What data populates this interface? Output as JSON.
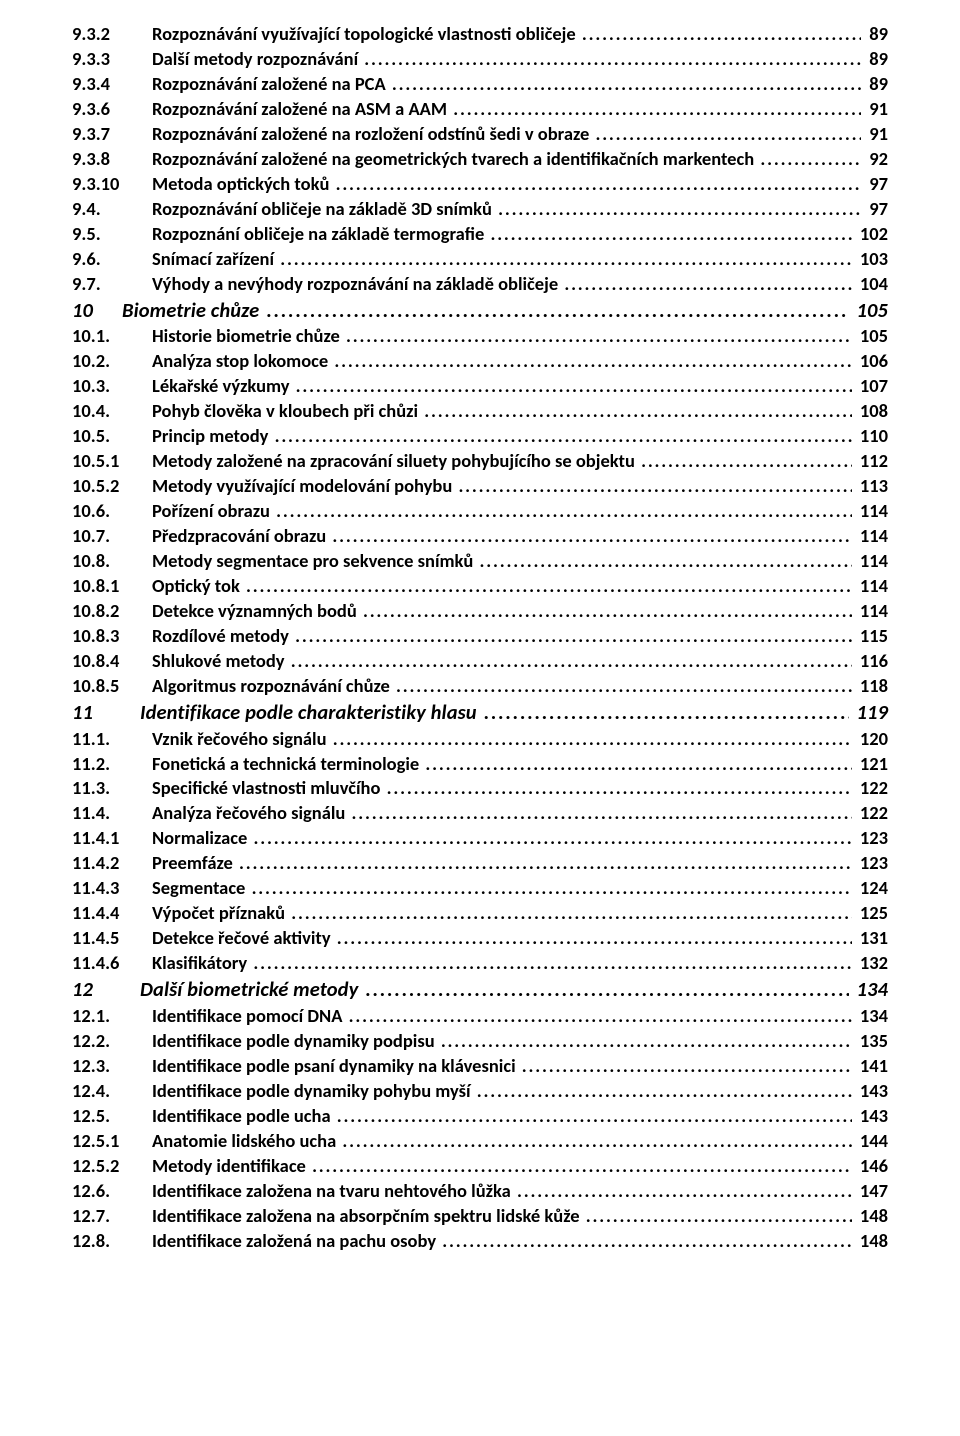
{
  "toc": [
    {
      "level": 3,
      "num": "9.3.2",
      "title": "Rozpoznávání využívající topologické vlastnosti obličeje",
      "page": "89"
    },
    {
      "level": 3,
      "num": "9.3.3",
      "title": "Další metody rozpoznávání",
      "page": "89"
    },
    {
      "level": 3,
      "num": "9.3.4",
      "title": "Rozpoznávání založené na PCA",
      "page": "89"
    },
    {
      "level": 3,
      "num": "9.3.6",
      "title": "Rozpoznávání založené na ASM a AAM",
      "page": "91"
    },
    {
      "level": 3,
      "num": "9.3.7",
      "title": "Rozpoznávání založené na rozložení odstínů šedi v obraze",
      "page": "91"
    },
    {
      "level": 3,
      "num": "9.3.8",
      "title": "Rozpoznávání založené na geometrických tvarech a identifikačních markentech",
      "page": "92"
    },
    {
      "level": 3,
      "num": "9.3.10",
      "title": "Metoda optických toků",
      "page": "97"
    },
    {
      "level": 2,
      "num": "9.4.",
      "title": "Rozpoznávání obličeje na základě 3D snímků",
      "page": "97"
    },
    {
      "level": 2,
      "num": "9.5.",
      "title": "Rozpoznání obličeje na základě termografie",
      "page": "102"
    },
    {
      "level": 2,
      "num": "9.6.",
      "title": "Snímací zařízení",
      "page": "103"
    },
    {
      "level": 2,
      "num": "9.7.",
      "title": "Výhody a nevýhody rozpoznávání na základě obličeje",
      "page": "104"
    },
    {
      "level": 1,
      "num": "10",
      "title": "Biometrie chůze",
      "page": "105"
    },
    {
      "level": 2,
      "num": "10.1.",
      "title": "Historie biometrie chůze",
      "page": "105"
    },
    {
      "level": 2,
      "num": "10.2.",
      "title": "Analýza stop lokomoce",
      "page": "106"
    },
    {
      "level": 2,
      "num": "10.3.",
      "title": "Lékařské výzkumy",
      "page": "107"
    },
    {
      "level": 2,
      "num": "10.4.",
      "title": "Pohyb člověka v kloubech při chůzi",
      "page": "108"
    },
    {
      "level": 2,
      "num": "10.5.",
      "title": "Princip metody",
      "page": "110"
    },
    {
      "level": 3,
      "num": "10.5.1",
      "title": "Metody založené na zpracování siluety pohybujícího se objektu",
      "page": "112"
    },
    {
      "level": 3,
      "num": "10.5.2",
      "title": "Metody využívající modelování pohybu",
      "page": "113"
    },
    {
      "level": 2,
      "num": "10.6.",
      "title": "Pořízení obrazu",
      "page": "114"
    },
    {
      "level": 2,
      "num": "10.7.",
      "title": "Předzpracování obrazu",
      "page": "114"
    },
    {
      "level": 2,
      "num": "10.8.",
      "title": "Metody segmentace pro sekvence snímků",
      "page": "114"
    },
    {
      "level": 3,
      "num": "10.8.1",
      "title": "Optický tok",
      "page": "114"
    },
    {
      "level": 3,
      "num": "10.8.2",
      "title": "Detekce významných bodů",
      "page": "114"
    },
    {
      "level": 3,
      "num": "10.8.3",
      "title": "Rozdílové metody",
      "page": "115"
    },
    {
      "level": 3,
      "num": "10.8.4",
      "title": "Shlukové metody",
      "page": "116"
    },
    {
      "level": 3,
      "num": "10.8.5",
      "title": "Algoritmus rozpoznávání chůze",
      "page": "118"
    },
    {
      "level": 1,
      "num": "11",
      "title": "Identifikace podle charakteristiky hlasu",
      "page": "119",
      "indent": true
    },
    {
      "level": 2,
      "num": "11.1.",
      "title": "Vznik řečového signálu",
      "page": "120"
    },
    {
      "level": 2,
      "num": "11.2.",
      "title": "Fonetická a technická terminologie",
      "page": "121"
    },
    {
      "level": 2,
      "num": "11.3.",
      "title": "Specifické vlastnosti mluvčího",
      "page": "122"
    },
    {
      "level": 2,
      "num": "11.4.",
      "title": "Analýza řečového signálu",
      "page": "122"
    },
    {
      "level": 3,
      "num": "11.4.1",
      "title": "Normalizace",
      "page": "123"
    },
    {
      "level": 3,
      "num": "11.4.2",
      "title": "Preemfáze",
      "page": "123"
    },
    {
      "level": 3,
      "num": "11.4.3",
      "title": "Segmentace",
      "page": "124"
    },
    {
      "level": 3,
      "num": "11.4.4",
      "title": "Výpočet příznaků",
      "page": "125"
    },
    {
      "level": 3,
      "num": "11.4.5",
      "title": "Detekce řečové aktivity",
      "page": "131"
    },
    {
      "level": 3,
      "num": "11.4.6",
      "title": "Klasifikátory",
      "page": "132"
    },
    {
      "level": 1,
      "num": "12",
      "title": "Další biometrické metody",
      "page": "134",
      "indent": true
    },
    {
      "level": 2,
      "num": "12.1.",
      "title": "Identifikace pomocí DNA",
      "page": "134"
    },
    {
      "level": 2,
      "num": "12.2.",
      "title": "Identifikace podle dynamiky podpisu",
      "page": "135"
    },
    {
      "level": 2,
      "num": "12.3.",
      "title": "Identifikace podle psaní dynamiky na klávesnici",
      "page": "141"
    },
    {
      "level": 2,
      "num": "12.4.",
      "title": "Identifikace podle dynamiky pohybu myší",
      "page": "143"
    },
    {
      "level": 2,
      "num": "12.5.",
      "title": "Identifikace podle ucha",
      "page": "143"
    },
    {
      "level": 3,
      "num": "12.5.1",
      "title": "Anatomie lidského ucha",
      "page": "144"
    },
    {
      "level": 3,
      "num": "12.5.2",
      "title": "Metody identifikace",
      "page": "146"
    },
    {
      "level": 2,
      "num": "12.6.",
      "title": "Identifikace založena na tvaru nehtového lůžka",
      "page": "147"
    },
    {
      "level": 2,
      "num": "12.7.",
      "title": "Identifikace založena na absorpčním spektru lidské kůže",
      "page": "148"
    },
    {
      "level": 2,
      "num": "12.8.",
      "title": "Identifikace založená na pachu osoby",
      "page": "148"
    }
  ]
}
